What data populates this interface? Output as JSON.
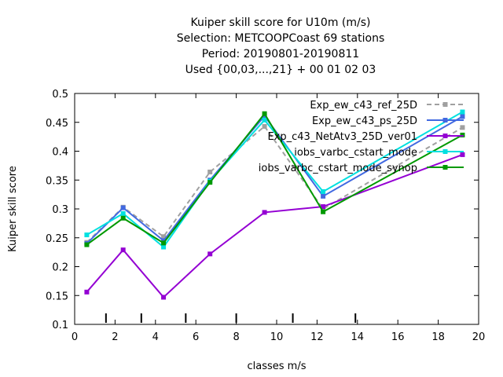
{
  "chart_data": {
    "type": "line",
    "title": [
      "Kuiper skill score  for U10m (m/s)",
      "Selection: METCOOPCoast     69 stations",
      "Period: 20190801-20190811",
      "Used {00,03,...,21} + 00 01 02 03"
    ],
    "xlabel": "classes m/s",
    "ylabel": "Kuiper skill score",
    "xlim": [
      0,
      20
    ],
    "ylim": [
      0.1,
      0.5
    ],
    "xticks": [
      0,
      2,
      4,
      6,
      8,
      10,
      12,
      14,
      16,
      18,
      20
    ],
    "yticks": [
      0.1,
      0.15,
      0.2,
      0.25,
      0.3,
      0.35,
      0.4,
      0.45,
      0.5
    ],
    "class_markers": [
      1.55,
      3.3,
      5.5,
      8.0,
      10.8,
      13.9
    ],
    "legend_position": "top-right",
    "grid": false,
    "series": [
      {
        "name": "Exp_ew_c43_ref_25D",
        "color": "#a0a0a0",
        "dashed": true,
        "x": [
          0.6,
          2.4,
          4.4,
          6.7,
          9.4,
          12.3,
          19.2
        ],
        "y": [
          0.242,
          0.303,
          0.252,
          0.364,
          0.443,
          0.3,
          0.441
        ]
      },
      {
        "name": "Exp_ew_c43_ps_25D",
        "color": "#4169e1",
        "dashed": false,
        "x": [
          0.6,
          2.4,
          4.4,
          6.7,
          9.4,
          12.3,
          19.2
        ],
        "y": [
          0.24,
          0.302,
          0.245,
          0.35,
          0.461,
          0.322,
          0.46
        ]
      },
      {
        "name": "Exp_c43_NetAtv3_25D_ver01",
        "color": "#9400d3",
        "dashed": false,
        "x": [
          0.6,
          2.4,
          4.4,
          6.7,
          9.4,
          12.3,
          19.2
        ],
        "y": [
          0.156,
          0.229,
          0.147,
          0.222,
          0.294,
          0.304,
          0.394
        ]
      },
      {
        "name": "iobs_varbc_cstart_mode",
        "color": "#00e0e0",
        "dashed": false,
        "x": [
          0.6,
          2.4,
          4.4,
          6.7,
          9.4,
          12.3,
          19.2
        ],
        "y": [
          0.255,
          0.292,
          0.234,
          0.348,
          0.454,
          0.33,
          0.468
        ]
      },
      {
        "name": "iobs_varbc_cstart_mode_synop",
        "color": "#009900",
        "dashed": false,
        "x": [
          0.6,
          2.4,
          4.4,
          6.7,
          9.4,
          12.3,
          19.2
        ],
        "y": [
          0.238,
          0.284,
          0.241,
          0.346,
          0.465,
          0.295,
          0.428
        ]
      }
    ]
  }
}
